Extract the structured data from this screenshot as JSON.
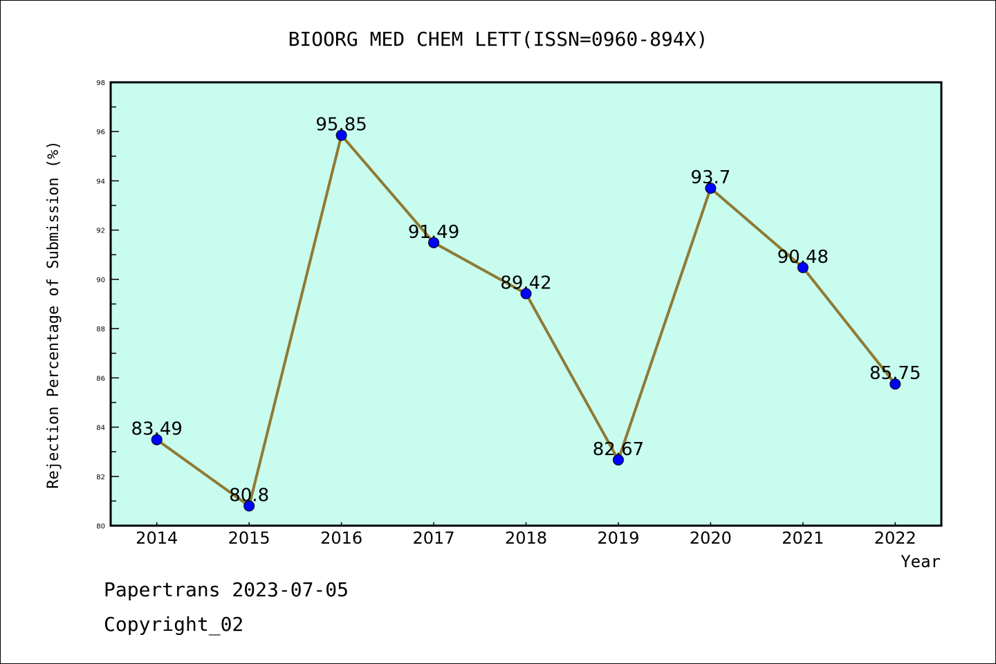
{
  "chart_data": {
    "type": "line",
    "title": "BIOORG MED CHEM LETT(ISSN=0960-894X)",
    "xlabel": "Year",
    "ylabel": "Rejection Percentage of Submission (%)",
    "x": [
      2014,
      2015,
      2016,
      2017,
      2018,
      2019,
      2020,
      2021,
      2022
    ],
    "x_tick_labels": [
      "2014",
      "2015",
      "2016",
      "2017",
      "2018",
      "2019",
      "2020",
      "2021",
      "2022"
    ],
    "series": [
      {
        "name": "Rejection Percentage",
        "values": [
          83.49,
          80.8,
          95.85,
          91.49,
          89.42,
          82.67,
          93.7,
          90.48,
          85.75
        ],
        "labels": [
          "83.49",
          "80.8",
          "95.85",
          "91.49",
          "89.42",
          "82.67",
          "93.7",
          "90.48",
          "85.75"
        ]
      }
    ],
    "xlim": [
      2013.5,
      2022.5
    ],
    "ylim": [
      80,
      98
    ],
    "y_tick_labels": [
      "80",
      "82",
      "84",
      "86",
      "88",
      "90",
      "92",
      "94",
      "96",
      "98"
    ],
    "grid": false,
    "colors": {
      "background": "#c8fcee",
      "line": "#8f7a35",
      "marker": "#0000ff"
    }
  },
  "footer": {
    "line1": "Papertrans 2023-07-05",
    "line2": "Copyright_02"
  }
}
